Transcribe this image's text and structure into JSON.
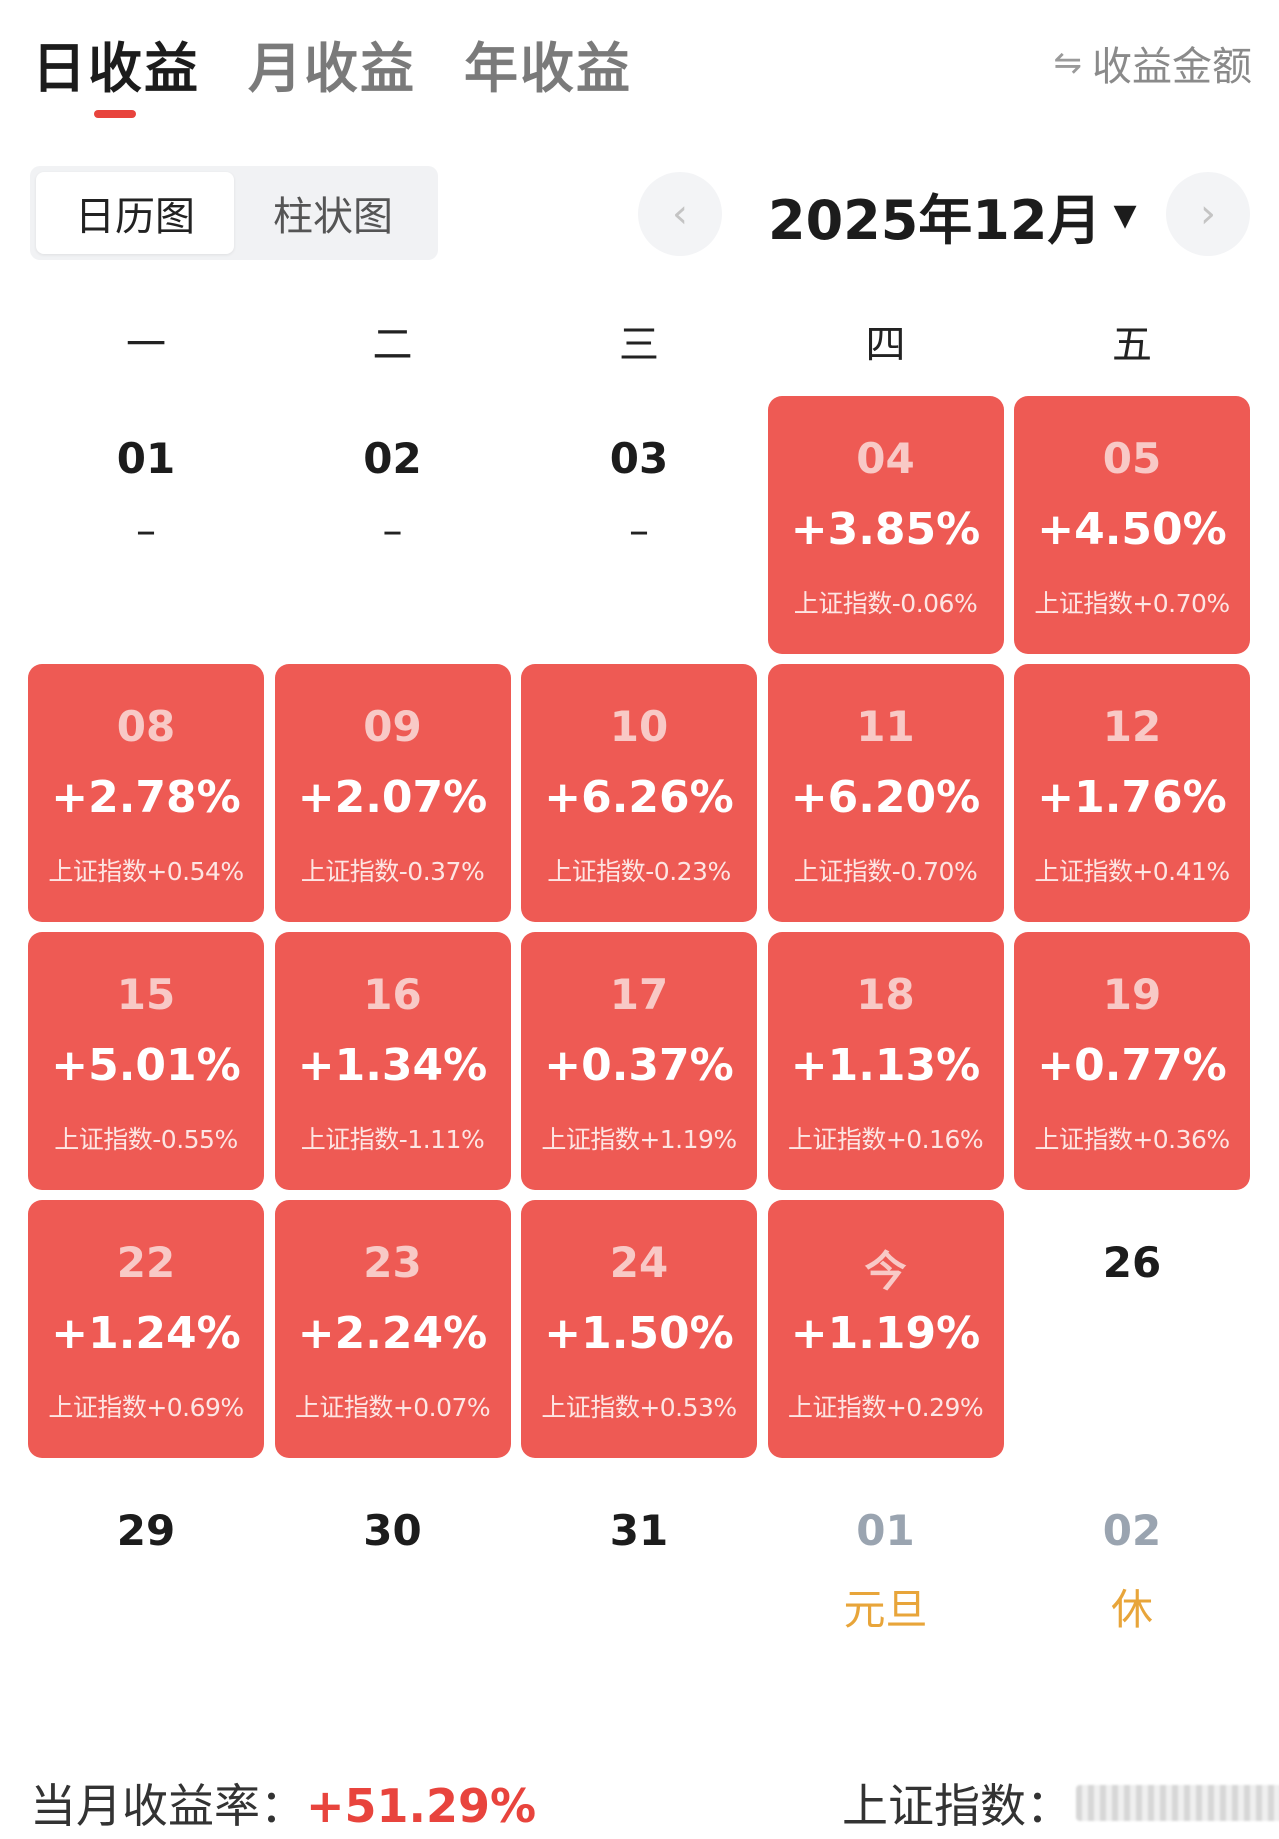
{
  "tabs": [
    {
      "label": "日收益",
      "active": true
    },
    {
      "label": "月收益",
      "active": false
    },
    {
      "label": "年收益",
      "active": false
    }
  ],
  "accent_color": "#e8443d",
  "cell_color": "#ee5a54",
  "holiday_color": "#e8a53a",
  "amount_toggle": {
    "icon": "swap-arrows-icon",
    "label": "收益金额"
  },
  "segment": [
    {
      "label": "日历图",
      "active": true
    },
    {
      "label": "柱状图",
      "active": false
    }
  ],
  "month_nav": {
    "label": "2025年12月",
    "prev_icon": "chevron-left-icon",
    "next_icon": "chevron-right-icon",
    "caret_icon": "caret-down-icon"
  },
  "weekdays": [
    "一",
    "二",
    "三",
    "四",
    "五"
  ],
  "weeks": [
    [
      {
        "day": "01",
        "type": "plain",
        "dash": "–"
      },
      {
        "day": "02",
        "type": "plain",
        "dash": "–"
      },
      {
        "day": "03",
        "type": "plain",
        "dash": "–"
      },
      {
        "day": "04",
        "type": "red",
        "pct": "+3.85%",
        "index": "上证指数-0.06%"
      },
      {
        "day": "05",
        "type": "red",
        "pct": "+4.50%",
        "index": "上证指数+0.70%"
      }
    ],
    [
      {
        "day": "08",
        "type": "red",
        "pct": "+2.78%",
        "index": "上证指数+0.54%"
      },
      {
        "day": "09",
        "type": "red",
        "pct": "+2.07%",
        "index": "上证指数-0.37%"
      },
      {
        "day": "10",
        "type": "red",
        "pct": "+6.26%",
        "index": "上证指数-0.23%"
      },
      {
        "day": "11",
        "type": "red",
        "pct": "+6.20%",
        "index": "上证指数-0.70%"
      },
      {
        "day": "12",
        "type": "red",
        "pct": "+1.76%",
        "index": "上证指数+0.41%"
      }
    ],
    [
      {
        "day": "15",
        "type": "red",
        "pct": "+5.01%",
        "index": "上证指数-0.55%"
      },
      {
        "day": "16",
        "type": "red",
        "pct": "+1.34%",
        "index": "上证指数-1.11%"
      },
      {
        "day": "17",
        "type": "red",
        "pct": "+0.37%",
        "index": "上证指数+1.19%"
      },
      {
        "day": "18",
        "type": "red",
        "pct": "+1.13%",
        "index": "上证指数+0.16%"
      },
      {
        "day": "19",
        "type": "red",
        "pct": "+0.77%",
        "index": "上证指数+0.36%"
      }
    ],
    [
      {
        "day": "22",
        "type": "red",
        "pct": "+1.24%",
        "index": "上证指数+0.69%"
      },
      {
        "day": "23",
        "type": "red",
        "pct": "+2.24%",
        "index": "上证指数+0.07%"
      },
      {
        "day": "24",
        "type": "red",
        "pct": "+1.50%",
        "index": "上证指数+0.53%"
      },
      {
        "day": "今",
        "type": "red",
        "pct": "+1.19%",
        "index": "上证指数+0.29%"
      },
      {
        "day": "26",
        "type": "plain"
      }
    ],
    [
      {
        "day": "29",
        "type": "plain"
      },
      {
        "day": "30",
        "type": "plain"
      },
      {
        "day": "31",
        "type": "plain"
      },
      {
        "day": "01",
        "type": "muted",
        "holiday": "元旦"
      },
      {
        "day": "02",
        "type": "muted",
        "holiday": "休"
      }
    ]
  ],
  "footer": {
    "monthly_label": "当月收益率：",
    "monthly_value": "+51.29%",
    "index_label": "上证指数："
  }
}
